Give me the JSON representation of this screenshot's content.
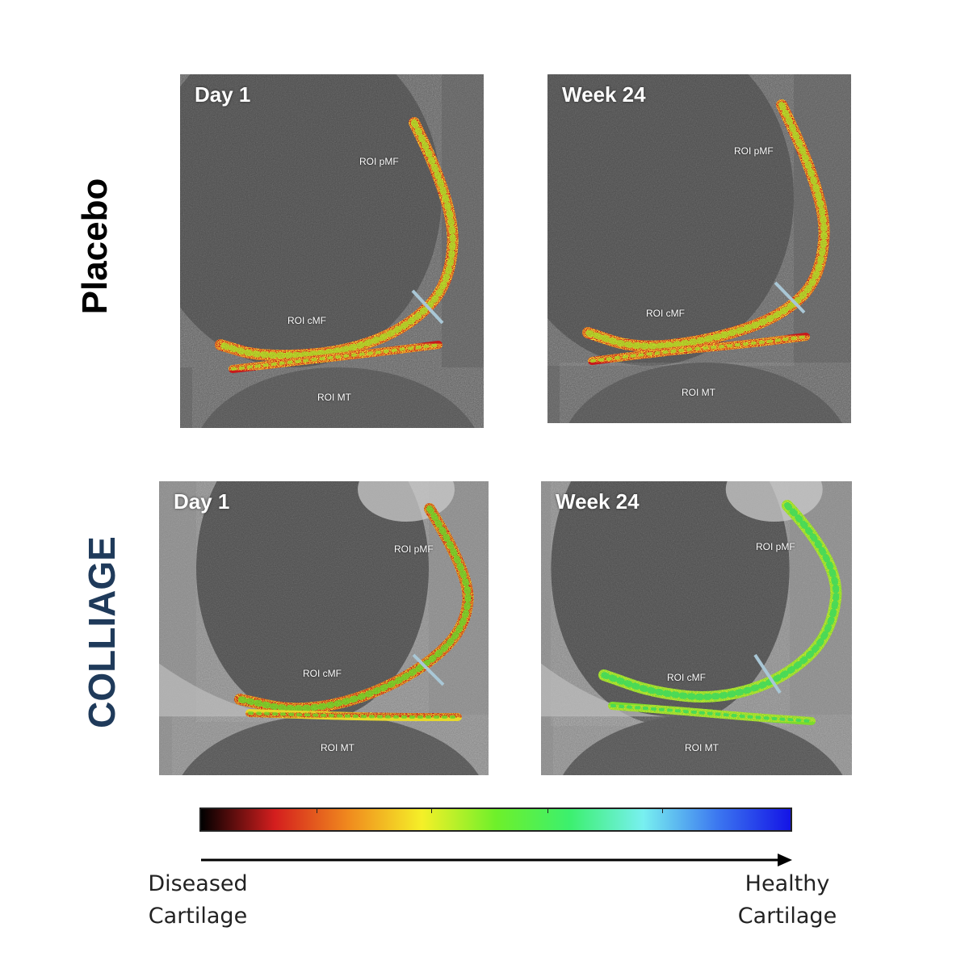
{
  "groups": {
    "placebo": {
      "label": "Placebo",
      "color": "#000000"
    },
    "colliage": {
      "label": "COLLIAGE",
      "color": "#1f3a5a"
    }
  },
  "panels": [
    {
      "group": "placebo",
      "timepoint": "Day 1",
      "roi": [
        "ROI  pMF",
        "ROI  cMF",
        "ROI  MT"
      ],
      "condition": "diseased"
    },
    {
      "group": "placebo",
      "timepoint": "Week 24",
      "roi": [
        "ROI  pMF",
        "ROI  cMF",
        "ROI  MT"
      ],
      "condition": "diseased"
    },
    {
      "group": "colliage",
      "timepoint": "Day 1",
      "roi": [
        "ROI pMF",
        "ROI cMF",
        "ROI  MT"
      ],
      "condition": "mixed"
    },
    {
      "group": "colliage",
      "timepoint": "Week 24",
      "roi": [
        "ROI pMF",
        "ROI cMF",
        "ROI  MT"
      ],
      "condition": "healthy"
    }
  ],
  "legend": {
    "colorbar_stops": [
      "#000000",
      "#d41e1e",
      "#f08a1e",
      "#f5f028",
      "#6ef02a",
      "#3cf06e",
      "#78f0f0",
      "#3c78f0",
      "#1414e6"
    ],
    "low_label": "Diseased\nCartilage",
    "high_label": "Healthy\nCartilage"
  }
}
